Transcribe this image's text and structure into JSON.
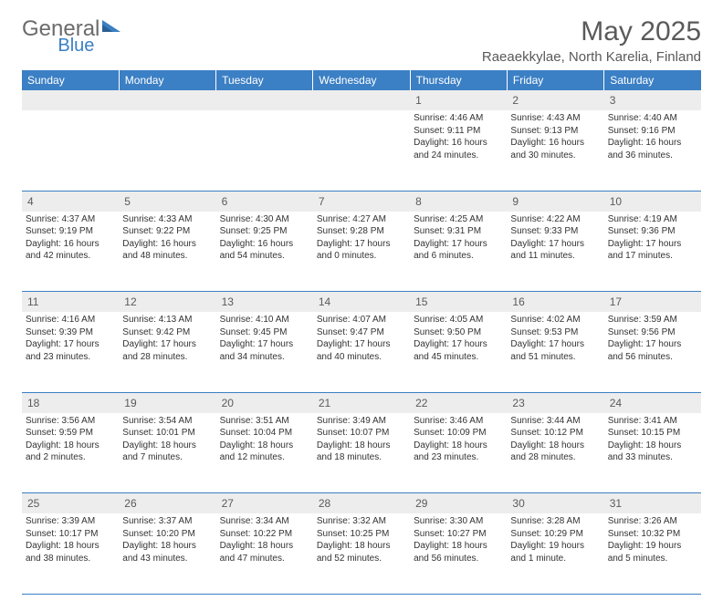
{
  "logo": {
    "text_left": "General",
    "text_right": "Blue"
  },
  "title": "May 2025",
  "location": "Raeaekkylae, North Karelia, Finland",
  "colors": {
    "header_bg": "#3b7fc4",
    "header_text": "#ffffff",
    "daynum_bg": "#ededed",
    "rule": "#3b7fc4",
    "text": "#333333",
    "logo_gray": "#6b6b6b",
    "logo_blue": "#3b7fc4"
  },
  "weekdays": [
    "Sunday",
    "Monday",
    "Tuesday",
    "Wednesday",
    "Thursday",
    "Friday",
    "Saturday"
  ],
  "weeks": [
    [
      null,
      null,
      null,
      null,
      {
        "n": "1",
        "sunrise": "4:46 AM",
        "sunset": "9:11 PM",
        "daylight": "16 hours and 24 minutes."
      },
      {
        "n": "2",
        "sunrise": "4:43 AM",
        "sunset": "9:13 PM",
        "daylight": "16 hours and 30 minutes."
      },
      {
        "n": "3",
        "sunrise": "4:40 AM",
        "sunset": "9:16 PM",
        "daylight": "16 hours and 36 minutes."
      }
    ],
    [
      {
        "n": "4",
        "sunrise": "4:37 AM",
        "sunset": "9:19 PM",
        "daylight": "16 hours and 42 minutes."
      },
      {
        "n": "5",
        "sunrise": "4:33 AM",
        "sunset": "9:22 PM",
        "daylight": "16 hours and 48 minutes."
      },
      {
        "n": "6",
        "sunrise": "4:30 AM",
        "sunset": "9:25 PM",
        "daylight": "16 hours and 54 minutes."
      },
      {
        "n": "7",
        "sunrise": "4:27 AM",
        "sunset": "9:28 PM",
        "daylight": "17 hours and 0 minutes."
      },
      {
        "n": "8",
        "sunrise": "4:25 AM",
        "sunset": "9:31 PM",
        "daylight": "17 hours and 6 minutes."
      },
      {
        "n": "9",
        "sunrise": "4:22 AM",
        "sunset": "9:33 PM",
        "daylight": "17 hours and 11 minutes."
      },
      {
        "n": "10",
        "sunrise": "4:19 AM",
        "sunset": "9:36 PM",
        "daylight": "17 hours and 17 minutes."
      }
    ],
    [
      {
        "n": "11",
        "sunrise": "4:16 AM",
        "sunset": "9:39 PM",
        "daylight": "17 hours and 23 minutes."
      },
      {
        "n": "12",
        "sunrise": "4:13 AM",
        "sunset": "9:42 PM",
        "daylight": "17 hours and 28 minutes."
      },
      {
        "n": "13",
        "sunrise": "4:10 AM",
        "sunset": "9:45 PM",
        "daylight": "17 hours and 34 minutes."
      },
      {
        "n": "14",
        "sunrise": "4:07 AM",
        "sunset": "9:47 PM",
        "daylight": "17 hours and 40 minutes."
      },
      {
        "n": "15",
        "sunrise": "4:05 AM",
        "sunset": "9:50 PM",
        "daylight": "17 hours and 45 minutes."
      },
      {
        "n": "16",
        "sunrise": "4:02 AM",
        "sunset": "9:53 PM",
        "daylight": "17 hours and 51 minutes."
      },
      {
        "n": "17",
        "sunrise": "3:59 AM",
        "sunset": "9:56 PM",
        "daylight": "17 hours and 56 minutes."
      }
    ],
    [
      {
        "n": "18",
        "sunrise": "3:56 AM",
        "sunset": "9:59 PM",
        "daylight": "18 hours and 2 minutes."
      },
      {
        "n": "19",
        "sunrise": "3:54 AM",
        "sunset": "10:01 PM",
        "daylight": "18 hours and 7 minutes."
      },
      {
        "n": "20",
        "sunrise": "3:51 AM",
        "sunset": "10:04 PM",
        "daylight": "18 hours and 12 minutes."
      },
      {
        "n": "21",
        "sunrise": "3:49 AM",
        "sunset": "10:07 PM",
        "daylight": "18 hours and 18 minutes."
      },
      {
        "n": "22",
        "sunrise": "3:46 AM",
        "sunset": "10:09 PM",
        "daylight": "18 hours and 23 minutes."
      },
      {
        "n": "23",
        "sunrise": "3:44 AM",
        "sunset": "10:12 PM",
        "daylight": "18 hours and 28 minutes."
      },
      {
        "n": "24",
        "sunrise": "3:41 AM",
        "sunset": "10:15 PM",
        "daylight": "18 hours and 33 minutes."
      }
    ],
    [
      {
        "n": "25",
        "sunrise": "3:39 AM",
        "sunset": "10:17 PM",
        "daylight": "18 hours and 38 minutes."
      },
      {
        "n": "26",
        "sunrise": "3:37 AM",
        "sunset": "10:20 PM",
        "daylight": "18 hours and 43 minutes."
      },
      {
        "n": "27",
        "sunrise": "3:34 AM",
        "sunset": "10:22 PM",
        "daylight": "18 hours and 47 minutes."
      },
      {
        "n": "28",
        "sunrise": "3:32 AM",
        "sunset": "10:25 PM",
        "daylight": "18 hours and 52 minutes."
      },
      {
        "n": "29",
        "sunrise": "3:30 AM",
        "sunset": "10:27 PM",
        "daylight": "18 hours and 56 minutes."
      },
      {
        "n": "30",
        "sunrise": "3:28 AM",
        "sunset": "10:29 PM",
        "daylight": "19 hours and 1 minute."
      },
      {
        "n": "31",
        "sunrise": "3:26 AM",
        "sunset": "10:32 PM",
        "daylight": "19 hours and 5 minutes."
      }
    ]
  ],
  "labels": {
    "sunrise": "Sunrise: ",
    "sunset": "Sunset: ",
    "daylight": "Daylight: "
  }
}
